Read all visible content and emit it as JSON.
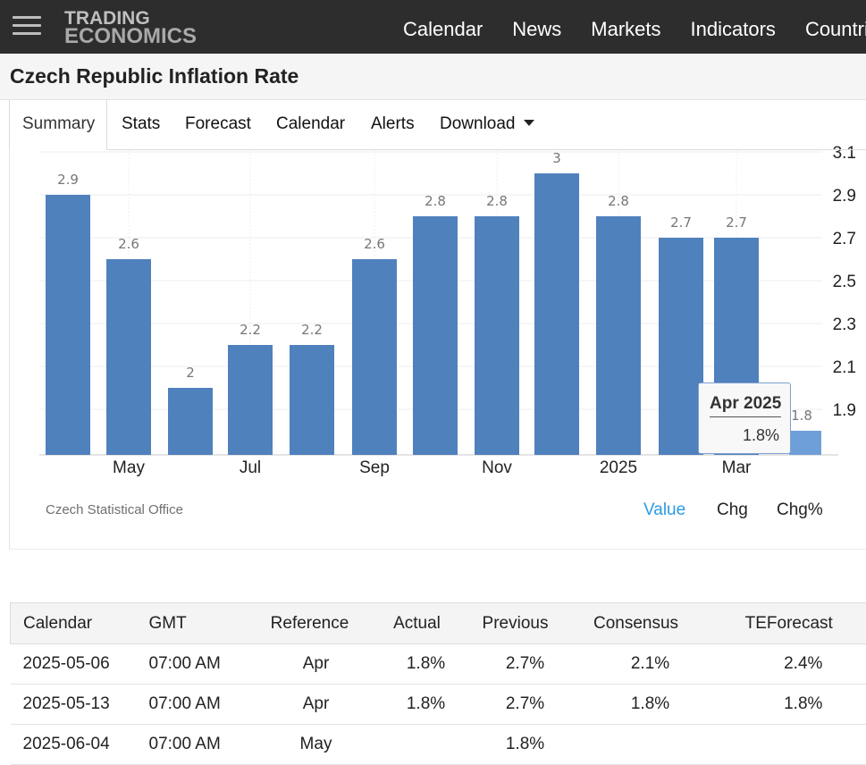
{
  "header": {
    "logo_line1": "TRADING",
    "logo_line2": "ECONOMICS",
    "nav": [
      "Calendar",
      "News",
      "Markets",
      "Indicators",
      "Countries"
    ]
  },
  "page_title": "Czech Republic Inflation Rate",
  "tabs": [
    "Summary",
    "Stats",
    "Forecast",
    "Calendar",
    "Alerts",
    "Download"
  ],
  "chart_data": {
    "type": "bar",
    "categories": [
      "Apr 2024",
      "May 2024",
      "Jun 2024",
      "Jul 2024",
      "Aug 2024",
      "Sep 2024",
      "Oct 2024",
      "Nov 2024",
      "Dec 2024",
      "Jan 2025",
      "Feb 2025",
      "Mar 2025",
      "Apr 2025"
    ],
    "values": [
      2.9,
      2.6,
      2,
      2.2,
      2.2,
      2.6,
      2.8,
      2.8,
      3,
      2.8,
      2.7,
      2.7,
      1.8
    ],
    "value_labels": [
      "2.9",
      "2.6",
      "2",
      "2.2",
      "2.2",
      "2.6",
      "2.8",
      "2.8",
      "3",
      "2.8",
      "2.7",
      "2.7",
      "1.8"
    ],
    "x_tick_labels": [
      "May",
      "Jul",
      "Sep",
      "Nov",
      "2025",
      "Mar"
    ],
    "y_tick_labels": [
      "1.9",
      "2.1",
      "2.3",
      "2.5",
      "2.7",
      "2.9",
      "3.1"
    ],
    "ylim": [
      1.7,
      3.1
    ],
    "grid": true,
    "bar_color": "#4f81bd",
    "highlight_color": "#6f9fd8",
    "title": "",
    "xlabel": "",
    "ylabel": ""
  },
  "tooltip": {
    "date": "Apr 2025",
    "value": "1.8%"
  },
  "source": "Czech Statistical Office",
  "series_switch": {
    "value": "Value",
    "chg": "Chg",
    "chgpct": "Chg%"
  },
  "accent_color": "#2b9be5",
  "calendar": {
    "headers": [
      "Calendar",
      "GMT",
      "Reference",
      "Actual",
      "Previous",
      "Consensus",
      "TEForecast"
    ],
    "rows": [
      [
        "2025-05-06",
        "07:00 AM",
        "Apr",
        "1.8%",
        "2.7%",
        "2.1%",
        "2.4%"
      ],
      [
        "2025-05-13",
        "07:00 AM",
        "Apr",
        "1.8%",
        "2.7%",
        "1.8%",
        "1.8%"
      ],
      [
        "2025-06-04",
        "07:00 AM",
        "May",
        "",
        "1.8%",
        "",
        ""
      ]
    ]
  }
}
